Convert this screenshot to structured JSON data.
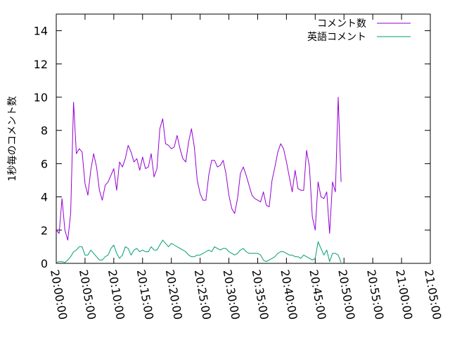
{
  "chart_data": {
    "type": "line",
    "ylabel": "1秒毎のコメント数",
    "xlabel": "",
    "ylim": [
      0,
      15
    ],
    "yticks": [
      0,
      2,
      4,
      6,
      8,
      10,
      12,
      14
    ],
    "xlim": [
      "20:00:00",
      "21:05:00"
    ],
    "xticks": [
      "20:00:00",
      "20:05:00",
      "20:10:00",
      "20:15:00",
      "20:20:00",
      "20:25:00",
      "20:30:00",
      "20:35:00",
      "20:40:00",
      "20:45:00",
      "20:50:00",
      "20:55:00",
      "21:00:00",
      "21:05:00"
    ],
    "grid": false,
    "legend": "top-right",
    "colors": [
      "#9400d3",
      "#009e73"
    ],
    "series": [
      {
        "name": "コメント数",
        "color": "#9400d3",
        "points": [
          [
            "20:00:00",
            2.0
          ],
          [
            "20:00:30",
            1.8
          ],
          [
            "20:01:00",
            3.9
          ],
          [
            "20:01:30",
            2.0
          ],
          [
            "20:02:00",
            1.4
          ],
          [
            "20:02:30",
            3.0
          ],
          [
            "20:03:00",
            9.7
          ],
          [
            "20:03:30",
            6.6
          ],
          [
            "20:04:00",
            6.9
          ],
          [
            "20:04:30",
            6.7
          ],
          [
            "20:05:00",
            4.8
          ],
          [
            "20:05:30",
            4.1
          ],
          [
            "20:06:00",
            5.6
          ],
          [
            "20:06:30",
            6.6
          ],
          [
            "20:07:00",
            5.8
          ],
          [
            "20:07:30",
            4.4
          ],
          [
            "20:08:00",
            3.8
          ],
          [
            "20:08:30",
            4.7
          ],
          [
            "20:09:00",
            4.9
          ],
          [
            "20:09:30",
            5.3
          ],
          [
            "20:10:00",
            5.7
          ],
          [
            "20:10:30",
            4.4
          ],
          [
            "20:11:00",
            6.1
          ],
          [
            "20:11:30",
            5.8
          ],
          [
            "20:12:00",
            6.3
          ],
          [
            "20:12:30",
            7.1
          ],
          [
            "20:13:00",
            6.7
          ],
          [
            "20:13:30",
            6.1
          ],
          [
            "20:14:00",
            6.3
          ],
          [
            "20:14:30",
            5.6
          ],
          [
            "20:15:00",
            6.4
          ],
          [
            "20:15:30",
            5.7
          ],
          [
            "20:16:00",
            5.8
          ],
          [
            "20:16:30",
            6.6
          ],
          [
            "20:17:00",
            5.2
          ],
          [
            "20:17:30",
            5.7
          ],
          [
            "20:18:00",
            8.1
          ],
          [
            "20:18:30",
            8.7
          ],
          [
            "20:19:00",
            7.2
          ],
          [
            "20:19:30",
            7.1
          ],
          [
            "20:20:00",
            6.9
          ],
          [
            "20:20:30",
            7.0
          ],
          [
            "20:21:00",
            7.7
          ],
          [
            "20:21:30",
            6.9
          ],
          [
            "20:22:00",
            6.3
          ],
          [
            "20:22:30",
            6.1
          ],
          [
            "20:23:00",
            7.3
          ],
          [
            "20:23:30",
            8.1
          ],
          [
            "20:24:00",
            7.0
          ],
          [
            "20:24:30",
            5.0
          ],
          [
            "20:25:00",
            4.2
          ],
          [
            "20:25:30",
            3.8
          ],
          [
            "20:26:00",
            3.8
          ],
          [
            "20:26:30",
            5.3
          ],
          [
            "20:27:00",
            6.2
          ],
          [
            "20:27:30",
            6.2
          ],
          [
            "20:28:00",
            5.8
          ],
          [
            "20:28:30",
            5.9
          ],
          [
            "20:29:00",
            6.2
          ],
          [
            "20:29:30",
            5.4
          ],
          [
            "20:30:00",
            4.1
          ],
          [
            "20:30:30",
            3.3
          ],
          [
            "20:31:00",
            3.0
          ],
          [
            "20:31:30",
            3.9
          ],
          [
            "20:32:00",
            5.4
          ],
          [
            "20:32:30",
            5.8
          ],
          [
            "20:33:00",
            5.3
          ],
          [
            "20:33:30",
            4.7
          ],
          [
            "20:34:00",
            4.1
          ],
          [
            "20:34:30",
            3.9
          ],
          [
            "20:35:00",
            3.8
          ],
          [
            "20:35:30",
            3.7
          ],
          [
            "20:36:00",
            4.3
          ],
          [
            "20:36:30",
            3.5
          ],
          [
            "20:37:00",
            3.4
          ],
          [
            "20:37:30",
            5.0
          ],
          [
            "20:38:00",
            5.8
          ],
          [
            "20:38:30",
            6.7
          ],
          [
            "20:39:00",
            7.2
          ],
          [
            "20:39:30",
            6.9
          ],
          [
            "20:40:00",
            6.1
          ],
          [
            "20:40:30",
            5.2
          ],
          [
            "20:41:00",
            4.3
          ],
          [
            "20:41:30",
            5.6
          ],
          [
            "20:42:00",
            4.5
          ],
          [
            "20:42:30",
            4.4
          ],
          [
            "20:43:00",
            4.4
          ],
          [
            "20:43:30",
            6.8
          ],
          [
            "20:44:00",
            5.8
          ],
          [
            "20:44:30",
            2.8
          ],
          [
            "20:45:00",
            2.0
          ],
          [
            "20:45:30",
            4.9
          ],
          [
            "20:46:00",
            4.0
          ],
          [
            "20:46:30",
            3.9
          ],
          [
            "20:47:00",
            4.3
          ],
          [
            "20:47:30",
            1.8
          ],
          [
            "20:48:00",
            4.9
          ],
          [
            "20:48:30",
            4.3
          ],
          [
            "20:49:00",
            10.0
          ],
          [
            "20:49:30",
            4.9
          ]
        ]
      },
      {
        "name": "英語コメント",
        "color": "#009e73",
        "points": [
          [
            "20:00:00",
            0.05
          ],
          [
            "20:00:30",
            0.1
          ],
          [
            "20:01:00",
            0.1
          ],
          [
            "20:01:30",
            0.05
          ],
          [
            "20:02:00",
            0.2
          ],
          [
            "20:02:30",
            0.4
          ],
          [
            "20:03:00",
            0.7
          ],
          [
            "20:03:30",
            0.8
          ],
          [
            "20:04:00",
            1.0
          ],
          [
            "20:04:30",
            1.0
          ],
          [
            "20:05:00",
            0.5
          ],
          [
            "20:05:30",
            0.5
          ],
          [
            "20:06:00",
            0.8
          ],
          [
            "20:06:30",
            0.6
          ],
          [
            "20:07:00",
            0.4
          ],
          [
            "20:07:30",
            0.2
          ],
          [
            "20:08:00",
            0.2
          ],
          [
            "20:08:30",
            0.4
          ],
          [
            "20:09:00",
            0.5
          ],
          [
            "20:09:30",
            0.9
          ],
          [
            "20:10:00",
            1.1
          ],
          [
            "20:10:30",
            0.6
          ],
          [
            "20:11:00",
            0.3
          ],
          [
            "20:11:30",
            0.5
          ],
          [
            "20:12:00",
            1.0
          ],
          [
            "20:12:30",
            0.9
          ],
          [
            "20:13:00",
            0.5
          ],
          [
            "20:13:30",
            0.8
          ],
          [
            "20:14:00",
            0.9
          ],
          [
            "20:14:30",
            0.7
          ],
          [
            "20:15:00",
            0.8
          ],
          [
            "20:15:30",
            0.7
          ],
          [
            "20:16:00",
            0.7
          ],
          [
            "20:16:30",
            1.0
          ],
          [
            "20:17:00",
            0.8
          ],
          [
            "20:17:30",
            0.8
          ],
          [
            "20:18:00",
            1.1
          ],
          [
            "20:18:30",
            1.4
          ],
          [
            "20:19:00",
            1.2
          ],
          [
            "20:19:30",
            1.0
          ],
          [
            "20:20:00",
            1.2
          ],
          [
            "20:20:30",
            1.1
          ],
          [
            "20:21:00",
            1.0
          ],
          [
            "20:21:30",
            0.9
          ],
          [
            "20:22:00",
            0.8
          ],
          [
            "20:22:30",
            0.7
          ],
          [
            "20:23:00",
            0.5
          ],
          [
            "20:23:30",
            0.4
          ],
          [
            "20:24:00",
            0.4
          ],
          [
            "20:24:30",
            0.5
          ],
          [
            "20:25:00",
            0.5
          ],
          [
            "20:25:30",
            0.6
          ],
          [
            "20:26:00",
            0.7
          ],
          [
            "20:26:30",
            0.8
          ],
          [
            "20:27:00",
            0.7
          ],
          [
            "20:27:30",
            1.0
          ],
          [
            "20:28:00",
            0.9
          ],
          [
            "20:28:30",
            0.8
          ],
          [
            "20:29:00",
            0.9
          ],
          [
            "20:29:30",
            0.9
          ],
          [
            "20:30:00",
            0.7
          ],
          [
            "20:30:30",
            0.6
          ],
          [
            "20:31:00",
            0.5
          ],
          [
            "20:31:30",
            0.6
          ],
          [
            "20:32:00",
            0.8
          ],
          [
            "20:32:30",
            0.9
          ],
          [
            "20:33:00",
            0.7
          ],
          [
            "20:33:30",
            0.6
          ],
          [
            "20:34:00",
            0.6
          ],
          [
            "20:34:30",
            0.6
          ],
          [
            "20:35:00",
            0.6
          ],
          [
            "20:35:30",
            0.5
          ],
          [
            "20:36:00",
            0.2
          ],
          [
            "20:36:30",
            0.1
          ],
          [
            "20:37:00",
            0.2
          ],
          [
            "20:37:30",
            0.3
          ],
          [
            "20:38:00",
            0.4
          ],
          [
            "20:38:30",
            0.6
          ],
          [
            "20:39:00",
            0.7
          ],
          [
            "20:39:30",
            0.7
          ],
          [
            "20:40:00",
            0.6
          ],
          [
            "20:40:30",
            0.5
          ],
          [
            "20:41:00",
            0.5
          ],
          [
            "20:41:30",
            0.4
          ],
          [
            "20:42:00",
            0.4
          ],
          [
            "20:42:30",
            0.3
          ],
          [
            "20:43:00",
            0.5
          ],
          [
            "20:43:30",
            0.4
          ],
          [
            "20:44:00",
            0.3
          ],
          [
            "20:44:30",
            0.2
          ],
          [
            "20:45:00",
            0.3
          ],
          [
            "20:45:30",
            1.3
          ],
          [
            "20:46:00",
            0.9
          ],
          [
            "20:46:30",
            0.5
          ],
          [
            "20:47:00",
            0.8
          ],
          [
            "20:47:30",
            0.1
          ],
          [
            "20:48:00",
            0.6
          ],
          [
            "20:48:30",
            0.6
          ],
          [
            "20:49:00",
            0.5
          ],
          [
            "20:49:30",
            0.05
          ]
        ]
      }
    ]
  }
}
